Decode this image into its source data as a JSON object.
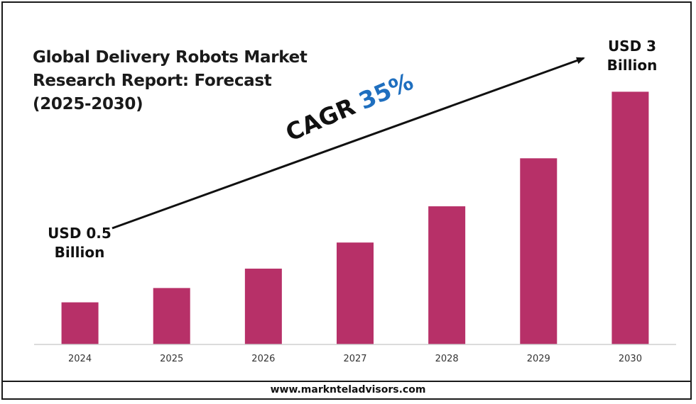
{
  "title": {
    "line1": "Global Delivery Robots Market",
    "line2": "Research Report: Forecast",
    "line3": "(2025-2030)"
  },
  "chart_data": {
    "type": "bar",
    "categories": [
      "2024",
      "2025",
      "2026",
      "2027",
      "2028",
      "2029",
      "2030"
    ],
    "values": [
      0.5,
      0.67,
      0.9,
      1.21,
      1.64,
      2.21,
      3.0
    ],
    "ylim": [
      0,
      3.5
    ],
    "grid": false,
    "legend": "none",
    "bar_color": "#b73068",
    "annotations": {
      "start_label_line1": "USD 0.5",
      "start_label_line2": "Billion",
      "end_label_line1": "USD 3",
      "end_label_line2": "Billion",
      "cagr_label": "CAGR",
      "cagr_value": "35%",
      "cagr_value_color": "#1f6fbf"
    }
  },
  "footer": {
    "url": "www.marknteladvisors.com"
  }
}
